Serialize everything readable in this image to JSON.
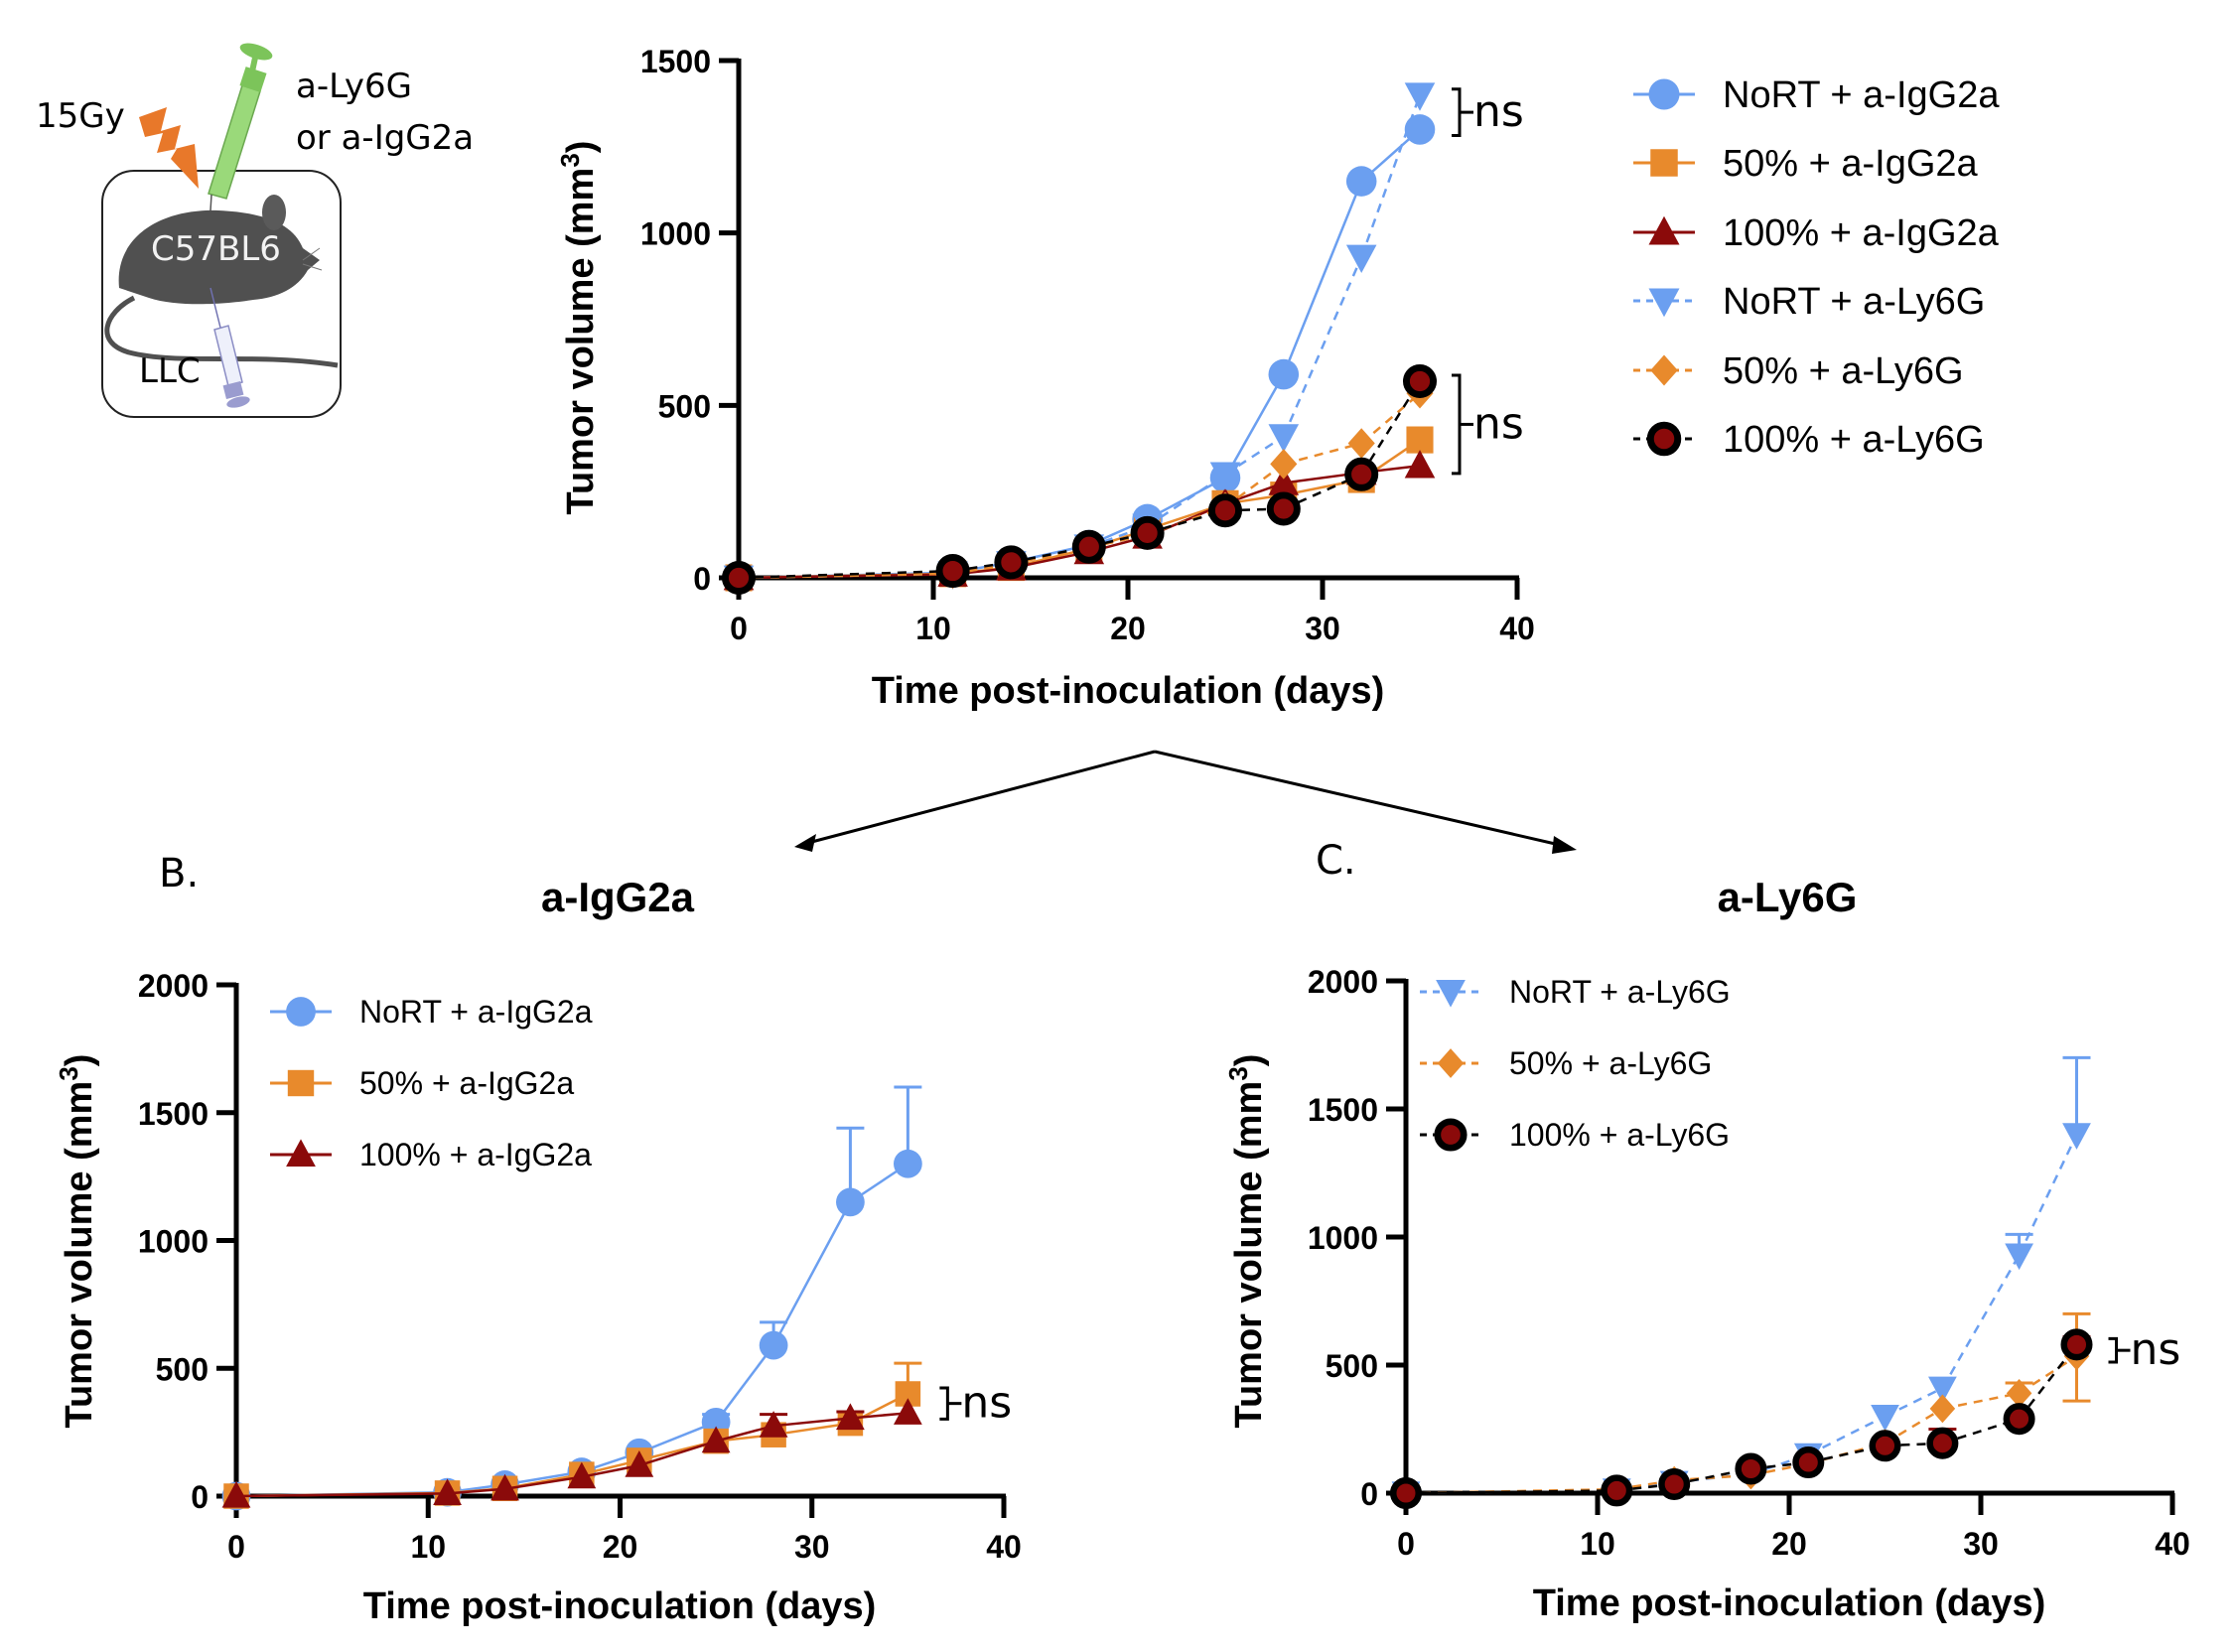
{
  "schematic": {
    "dose_label": "15Gy",
    "antibody_label_line1": "a-Ly6G",
    "antibody_label_line2": "or a-IgG2a",
    "mouse_strain": "C57BL6",
    "tumor_label": "LLC",
    "colors": {
      "bolt": "#e8782a",
      "syringe_top": "#8fd46a",
      "syringe_bottom": "#a9a9d8",
      "mouse": "#505050"
    }
  },
  "panel_labels": {
    "b": "B.",
    "c": "C."
  },
  "series_styles": {
    "NoRT + a-IgG2a": {
      "color": "#6b9ff0",
      "marker": "circle",
      "dash": false
    },
    "50% + a-IgG2a": {
      "color": "#e88a2c",
      "marker": "square",
      "dash": false
    },
    "100% + a-IgG2a": {
      "color": "#8b0a0a",
      "marker": "triangle-up",
      "dash": false
    },
    "NoRT + a-Ly6G": {
      "color": "#6b9ff0",
      "marker": "triangle-down",
      "dash": true
    },
    "50% + a-Ly6G": {
      "color": "#e88a2c",
      "marker": "diamond",
      "dash": true
    },
    "100% + a-Ly6G": {
      "color": "#8b0a0a",
      "marker": "circle-outlined",
      "dash": true,
      "line_color": "#000000"
    }
  },
  "chart_data": [
    {
      "id": "A",
      "type": "line",
      "title": "",
      "xlabel": "Time post-inoculation (days)",
      "ylabel": "Tumor volume (mm³)",
      "xlim": [
        0,
        40
      ],
      "ylim": [
        0,
        1500
      ],
      "xticks": [
        0,
        10,
        20,
        30,
        40
      ],
      "yticks": [
        0,
        500,
        1000,
        1500
      ],
      "legend_position": "right",
      "x": [
        0,
        11,
        14,
        18,
        21,
        25,
        28,
        32,
        35
      ],
      "series": [
        {
          "name": "NoRT + a-IgG2a",
          "values": [
            0,
            15,
            45,
            95,
            170,
            290,
            590,
            1150,
            1300
          ]
        },
        {
          "name": "50% + a-IgG2a",
          "values": [
            0,
            12,
            30,
            85,
            140,
            215,
            240,
            285,
            400
          ]
        },
        {
          "name": "100% + a-IgG2a",
          "values": [
            0,
            10,
            28,
            75,
            120,
            215,
            275,
            305,
            325
          ]
        },
        {
          "name": "NoRT + a-Ly6G",
          "values": [
            0,
            12,
            42,
            90,
            150,
            300,
            410,
            930,
            1400
          ]
        },
        {
          "name": "50% + a-Ly6G",
          "values": [
            0,
            12,
            40,
            88,
            125,
            205,
            330,
            390,
            535
          ]
        },
        {
          "name": "100% + a-Ly6G",
          "values": [
            0,
            20,
            45,
            90,
            130,
            195,
            200,
            300,
            570
          ]
        }
      ],
      "annotations": [
        {
          "text": "ns",
          "between": [
            "NoRT + a-IgG2a",
            "NoRT + a-Ly6G"
          ],
          "at_day": 35
        },
        {
          "text": "ns",
          "between": [
            "100% + a-IgG2a",
            "100% + a-Ly6G"
          ],
          "at_day": 35,
          "range": [
            320,
            570
          ]
        }
      ]
    },
    {
      "id": "B",
      "type": "line",
      "title": "a-IgG2a",
      "xlabel": "Time post-inoculation (days)",
      "ylabel": "Tumor volume (mm³)",
      "xlim": [
        0,
        40
      ],
      "ylim": [
        0,
        2000
      ],
      "xticks": [
        0,
        10,
        20,
        30,
        40
      ],
      "yticks": [
        0,
        500,
        1000,
        1500,
        2000
      ],
      "legend_position": "top-left",
      "x": [
        0,
        11,
        14,
        18,
        21,
        25,
        28,
        32,
        35
      ],
      "series": [
        {
          "name": "NoRT + a-IgG2a",
          "values": [
            0,
            15,
            45,
            95,
            170,
            290,
            590,
            1150,
            1300
          ],
          "error_upper": [
            0,
            0,
            0,
            0,
            0,
            320,
            680,
            1440,
            1600
          ]
        },
        {
          "name": "50% + a-IgG2a",
          "values": [
            0,
            12,
            30,
            85,
            140,
            215,
            240,
            285,
            400
          ],
          "error_upper": [
            0,
            0,
            0,
            0,
            0,
            0,
            0,
            0,
            520
          ]
        },
        {
          "name": "100% + a-IgG2a",
          "values": [
            0,
            10,
            28,
            75,
            120,
            215,
            275,
            305,
            325
          ],
          "error_upper": [
            0,
            0,
            0,
            0,
            0,
            0,
            320,
            330,
            0
          ]
        }
      ],
      "annotations": [
        {
          "text": "ns",
          "between": [
            "50% + a-IgG2a",
            "100% + a-IgG2a"
          ],
          "at_day": 35
        }
      ]
    },
    {
      "id": "C",
      "type": "line",
      "title": "a-Ly6G",
      "xlabel": "Time post-inoculation (days)",
      "ylabel": "Tumor volume (mm³)",
      "xlim": [
        0,
        40
      ],
      "ylim": [
        0,
        2000
      ],
      "xticks": [
        0,
        10,
        20,
        30,
        40
      ],
      "yticks": [
        0,
        500,
        1000,
        1500,
        2000
      ],
      "legend_position": "top-left",
      "x": [
        0,
        11,
        14,
        18,
        21,
        25,
        28,
        32,
        35
      ],
      "series": [
        {
          "name": "NoRT + a-Ly6G",
          "values": [
            0,
            12,
            42,
            75,
            150,
            300,
            410,
            930,
            1400
          ],
          "error_upper": [
            0,
            0,
            0,
            0,
            0,
            0,
            0,
            1010,
            1700
          ]
        },
        {
          "name": "50% + a-Ly6G",
          "values": [
            0,
            15,
            50,
            70,
            115,
            195,
            330,
            390,
            535
          ],
          "error_upper": [
            0,
            0,
            0,
            0,
            0,
            0,
            0,
            430,
            700
          ],
          "error_lower": [
            0,
            0,
            0,
            0,
            0,
            0,
            0,
            0,
            360
          ]
        },
        {
          "name": "100% + a-Ly6G",
          "values": [
            0,
            10,
            35,
            95,
            120,
            185,
            195,
            290,
            580
          ],
          "error_upper": [
            0,
            0,
            0,
            0,
            0,
            0,
            250,
            0,
            610
          ]
        }
      ],
      "annotations": [
        {
          "text": "ns",
          "between": [
            "50% + a-Ly6G",
            "100% + a-Ly6G"
          ],
          "at_day": 35
        }
      ]
    }
  ]
}
